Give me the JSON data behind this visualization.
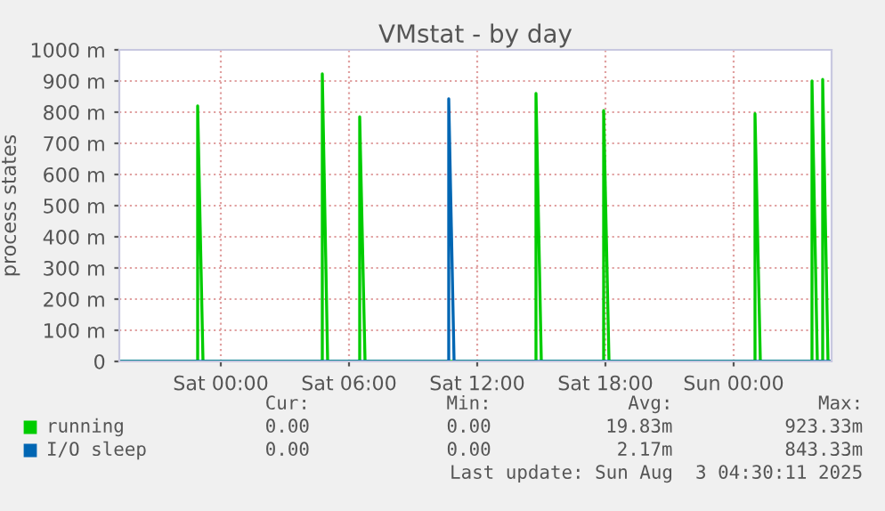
{
  "chart_data": {
    "type": "line",
    "title": "VMstat - by day",
    "ylabel": "process states",
    "xlim": [
      "2025-08-01T19:15",
      "2025-08-03T04:35"
    ],
    "xticks": [
      {
        "value": "2025-08-02T00:00",
        "label": "Sat 00:00"
      },
      {
        "value": "2025-08-02T06:00",
        "label": "Sat 06:00"
      },
      {
        "value": "2025-08-02T12:00",
        "label": "Sat 12:00"
      },
      {
        "value": "2025-08-02T18:00",
        "label": "Sat 18:00"
      },
      {
        "value": "2025-08-03T00:00",
        "label": "Sun 00:00"
      }
    ],
    "ylim": [
      0,
      1000
    ],
    "yticks": [
      {
        "value": 0,
        "label": "0"
      },
      {
        "value": 100,
        "label": "100 m"
      },
      {
        "value": 200,
        "label": "200 m"
      },
      {
        "value": 300,
        "label": "300 m"
      },
      {
        "value": 400,
        "label": "400 m"
      },
      {
        "value": 500,
        "label": "500 m"
      },
      {
        "value": 600,
        "label": "600 m"
      },
      {
        "value": 700,
        "label": "700 m"
      },
      {
        "value": 800,
        "label": "800 m"
      },
      {
        "value": 900,
        "label": "900 m"
      },
      {
        "value": 1000,
        "label": "1000 m"
      }
    ],
    "grid": true,
    "legend": "bottom",
    "marker": "none",
    "line_style": "solid",
    "series": [
      {
        "name": "running",
        "color": "#00cc00",
        "x": [
          "2025-08-01T19:15",
          "2025-08-01T22:55",
          "2025-08-01T22:55",
          "2025-08-01T23:10",
          "2025-08-02T04:45",
          "2025-08-02T04:45",
          "2025-08-02T05:00",
          "2025-08-02T06:30",
          "2025-08-02T06:30",
          "2025-08-02T06:45",
          "2025-08-02T14:45",
          "2025-08-02T14:45",
          "2025-08-02T15:00",
          "2025-08-02T17:55",
          "2025-08-02T17:55",
          "2025-08-02T18:10",
          "2025-08-03T01:00",
          "2025-08-03T01:00",
          "2025-08-03T01:15",
          "2025-08-03T03:40",
          "2025-08-03T03:40",
          "2025-08-03T03:55",
          "2025-08-03T04:10",
          "2025-08-03T04:10",
          "2025-08-03T04:25",
          "2025-08-03T04:35"
        ],
        "values": [
          0,
          0,
          820,
          0,
          0,
          923,
          0,
          0,
          785,
          0,
          0,
          860,
          0,
          0,
          805,
          0,
          0,
          795,
          0,
          0,
          900,
          0,
          0,
          905,
          0,
          0
        ]
      },
      {
        "name": "I/O sleep",
        "color": "#0066b3",
        "x": [
          "2025-08-01T19:15",
          "2025-08-02T10:40",
          "2025-08-02T10:40",
          "2025-08-02T10:55",
          "2025-08-03T04:35"
        ],
        "values": [
          0,
          0,
          843,
          0,
          0
        ]
      }
    ],
    "annotations": [
      "Cur:",
      "Min:",
      "Avg:",
      "Max:",
      "0.00",
      "0.00",
      "19.83m",
      "923.33m",
      "0.00",
      "0.00",
      "2.17m",
      "843.33m",
      "Last update: Sun Aug  3 04:30:11 2025"
    ]
  }
}
